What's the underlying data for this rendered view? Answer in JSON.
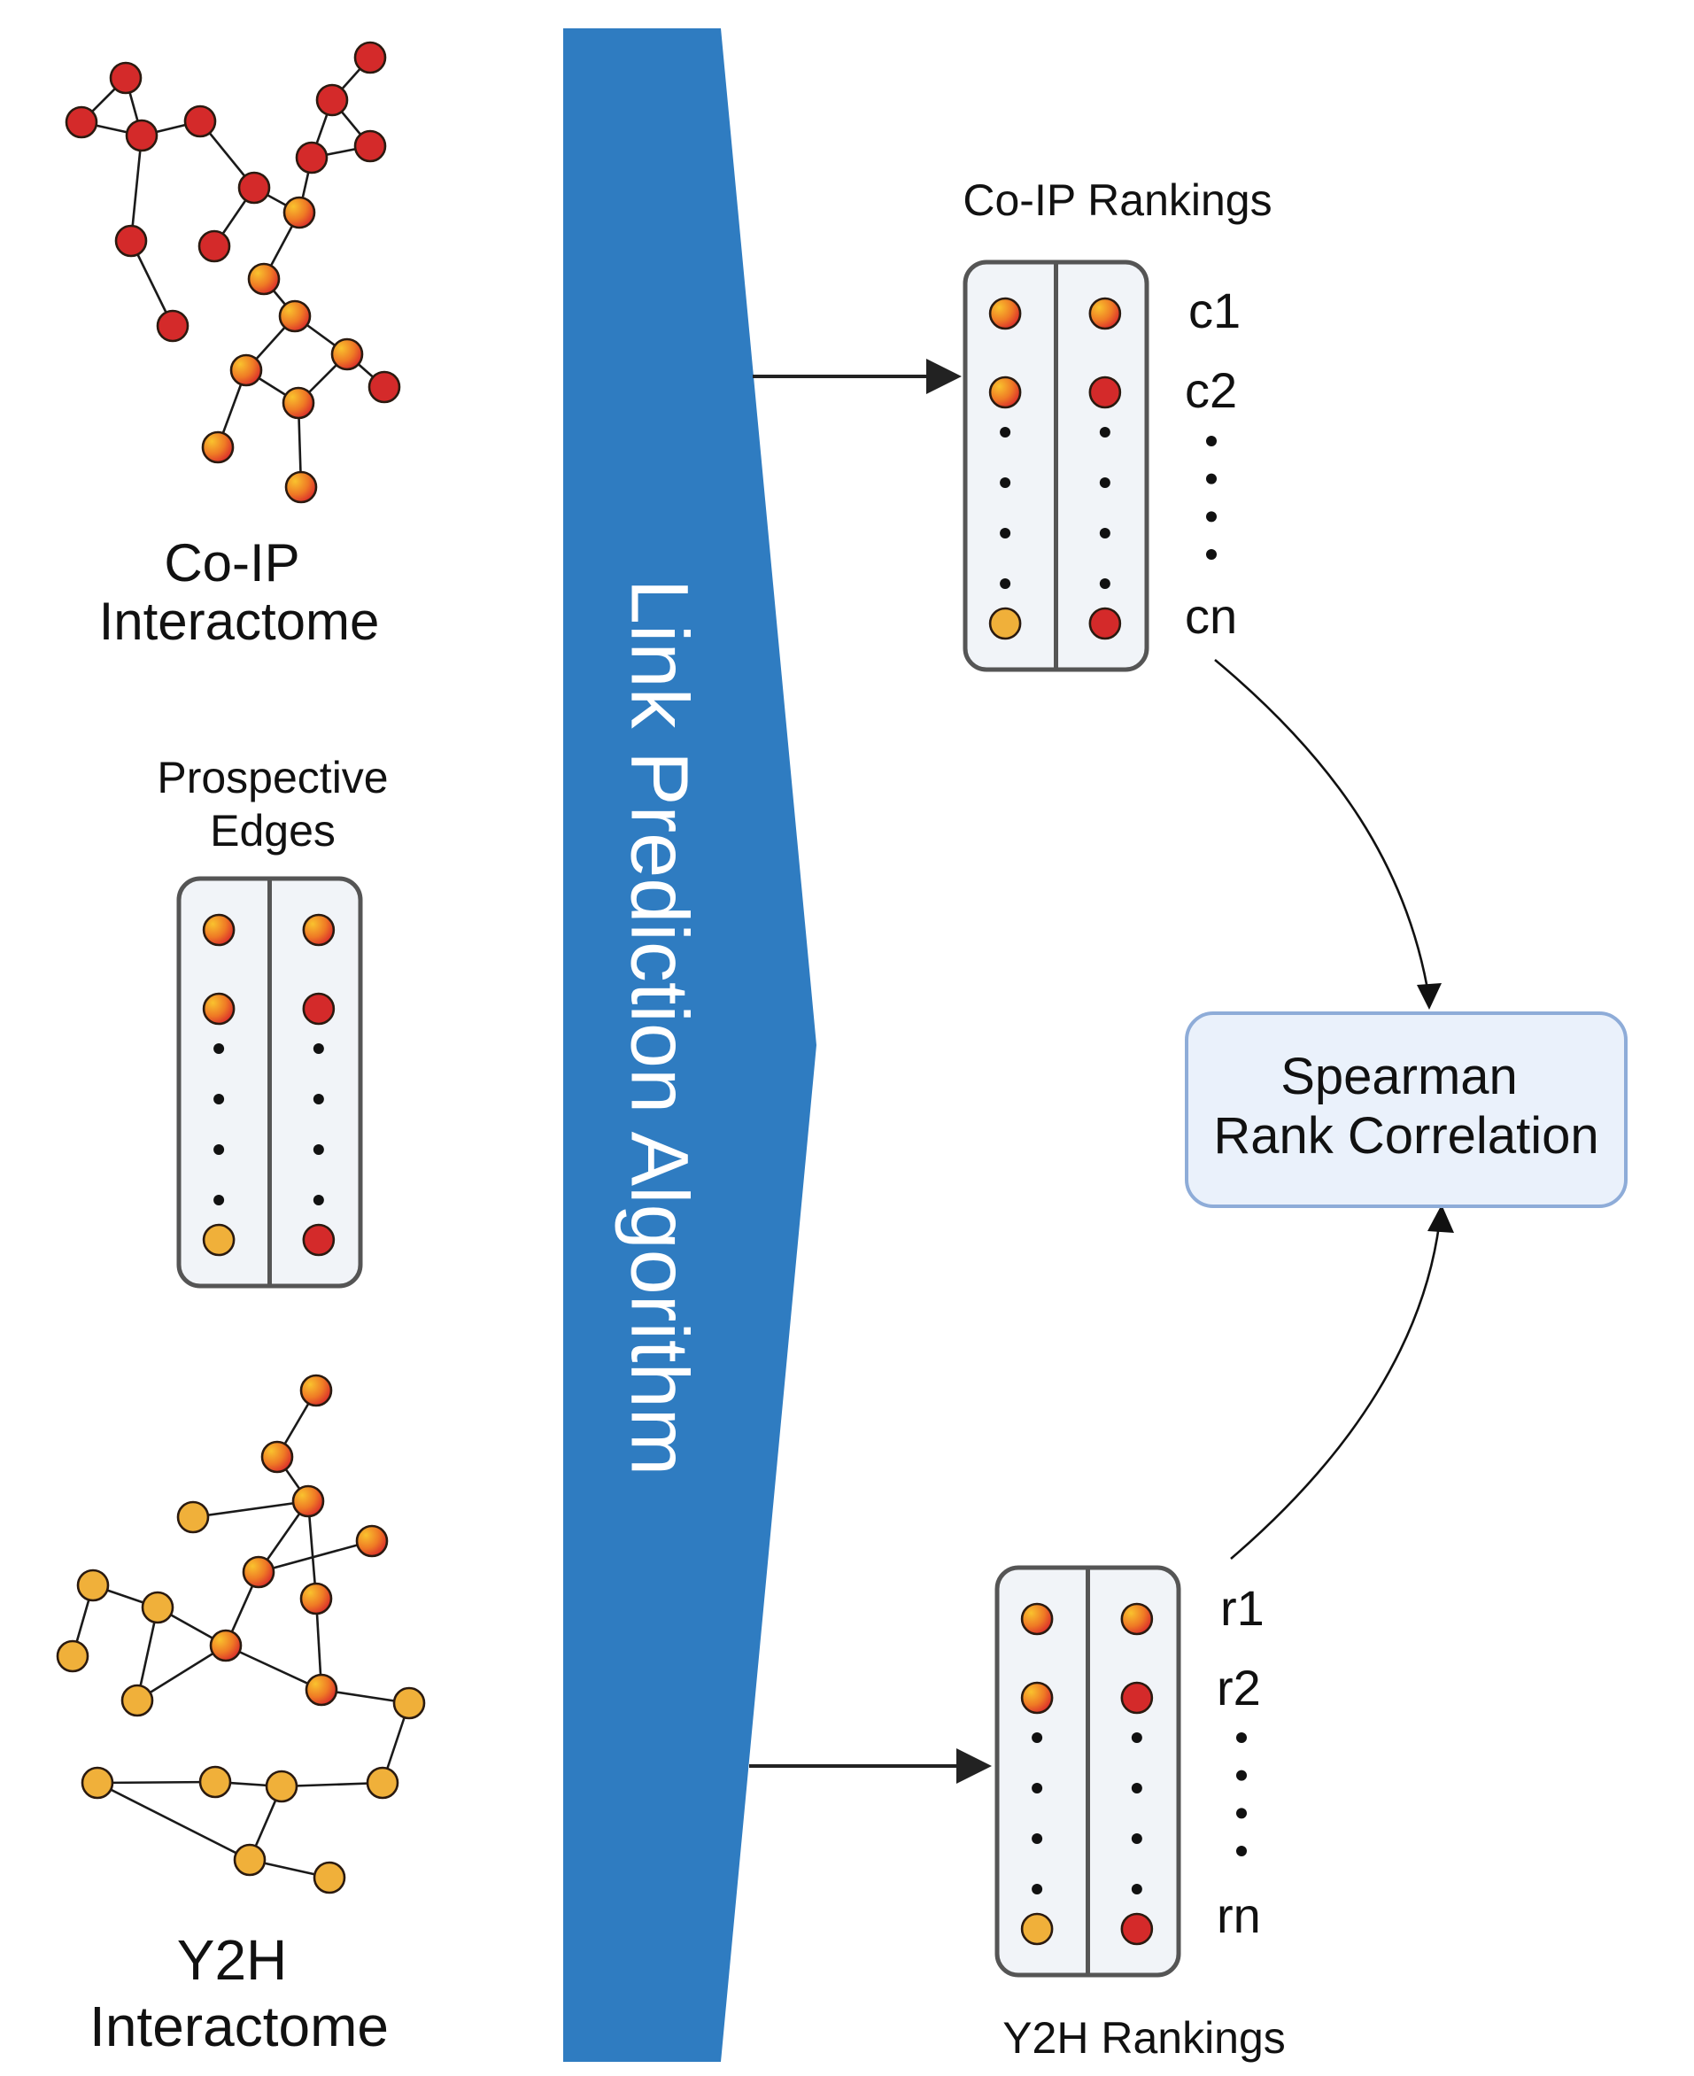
{
  "band": {
    "label": "Link Prediction Algorithm",
    "color": "#2f7cc1"
  },
  "coip_network": {
    "label_line1": "Co-IP",
    "label_line2": "Interactome"
  },
  "y2h_network": {
    "label_line1": "Y2H",
    "label_line2": "Interactome"
  },
  "prospective": {
    "label_line1": "Prospective",
    "label_line2": "Edges"
  },
  "coip_rankings": {
    "title": "Co-IP Rankings",
    "first": "c1",
    "second": "c2",
    "last": "cn"
  },
  "y2h_rankings": {
    "title": "Y2H Rankings",
    "first": "r1",
    "second": "r2",
    "last": "rn"
  },
  "result": {
    "line1": "Spearman",
    "line2": "Rank Correlation"
  },
  "colors": {
    "red_node": "#d42a2a",
    "orange_node": "#f0b03a",
    "box_fill": "#f1f4f8",
    "result_fill": "#eaf1fb",
    "result_border": "#8eacd8"
  }
}
